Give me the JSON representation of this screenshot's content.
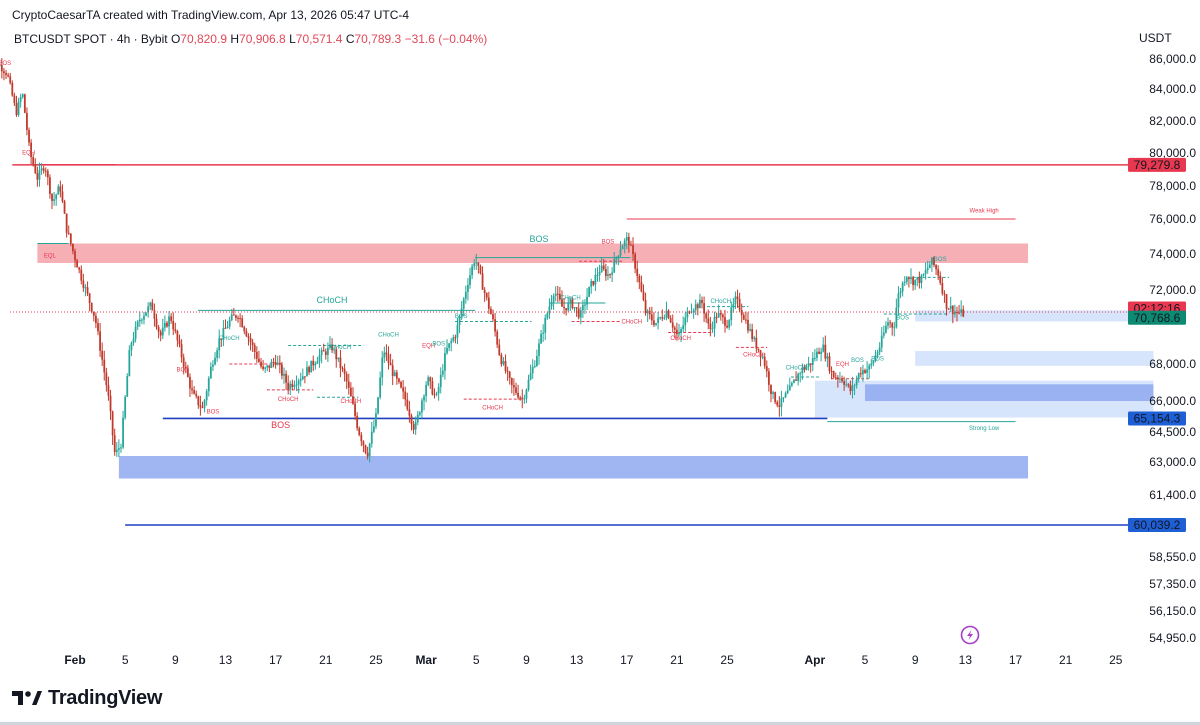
{
  "header": {
    "credit": "CryptoCaesarTA created with TradingView.com, Apr 13, 2026 05:47 UTC-4",
    "symbol": "BTCUSDT SPOT · 4h · Bybit",
    "open_label": "O",
    "open": "70,820.9",
    "high_label": "H",
    "high": "70,906.8",
    "low_label": "L",
    "low": "70,571.4",
    "close_label": "C",
    "close": "70,789.3",
    "change": "−31.6 (−0.04%)"
  },
  "brand": {
    "name": "TradingView"
  },
  "colors": {
    "up": "#26a69a",
    "down": "#c0392b",
    "red_line": "#e8384f",
    "blue_line": "#1f3fbf",
    "red_zone": "#f5a1a8",
    "blue_zone": "#8fa9f0",
    "light_blue_zone": "#cfe0fa"
  },
  "chart_data": {
    "type": "candlestick",
    "currency": "USDT",
    "interval": "4h",
    "y_ticks": [
      86000,
      84000,
      82000,
      80000,
      78000,
      76000,
      74000,
      72000,
      68000,
      66000,
      64500,
      63000,
      61400,
      58550,
      57350,
      56150,
      54950
    ],
    "y_tick_labels": [
      "86,000.0",
      "84,000.0",
      "82,000.0",
      "80,000.0",
      "78,000.0",
      "76,000.0",
      "74,000.0",
      "72,000.0",
      "68,000.0",
      "66,000.0",
      "64,500.0",
      "63,000.0",
      "61,400.0",
      "58,550.0",
      "57,350.0",
      "56,150.0",
      "54,950.0"
    ],
    "x_ticks": [
      {
        "label": "Feb",
        "day": 32,
        "bold": true
      },
      {
        "label": "5",
        "day": 36
      },
      {
        "label": "9",
        "day": 40
      },
      {
        "label": "13",
        "day": 44
      },
      {
        "label": "17",
        "day": 48
      },
      {
        "label": "21",
        "day": 52
      },
      {
        "label": "25",
        "day": 56
      },
      {
        "label": "Mar",
        "day": 60,
        "bold": true
      },
      {
        "label": "5",
        "day": 64
      },
      {
        "label": "9",
        "day": 68
      },
      {
        "label": "13",
        "day": 72
      },
      {
        "label": "17",
        "day": 76
      },
      {
        "label": "21",
        "day": 80
      },
      {
        "label": "25",
        "day": 84
      },
      {
        "label": "Apr",
        "day": 91,
        "bold": true
      },
      {
        "label": "5",
        "day": 95
      },
      {
        "label": "9",
        "day": 99
      },
      {
        "label": "13",
        "day": 103
      },
      {
        "label": "17",
        "day": 107
      },
      {
        "label": "21",
        "day": 111
      },
      {
        "label": "25",
        "day": 115
      }
    ],
    "price_tags": [
      {
        "label": "79,279.8",
        "value": 79279.8,
        "color": "#e8384f"
      },
      {
        "label": "02:12:16",
        "value": 71000,
        "color": "#e8384f"
      },
      {
        "label": "70,768.6",
        "value": 70500,
        "color": "#0d8a72"
      },
      {
        "label": "65,154.3",
        "value": 65154.3,
        "color": "#1f5fd6"
      },
      {
        "label": "60,039.2",
        "value": 60039.2,
        "color": "#1f5fd6"
      }
    ],
    "key_levels": [
      {
        "value": 79279.8,
        "from": 27,
        "to": 119,
        "color": "#e8384f"
      },
      {
        "value": 65154.3,
        "from": 39,
        "to": 92,
        "color": "#1f3fbf"
      },
      {
        "value": 60039.2,
        "from": 36,
        "to": 119,
        "color": "#1f3fbf"
      },
      {
        "value": 76000,
        "from": 76,
        "to": 107,
        "color": "#e8384f",
        "label": "Weak High"
      },
      {
        "value": 65000,
        "from": 92,
        "to": 107,
        "color": "#26a69a",
        "label": "Strong Low"
      }
    ],
    "zones": [
      {
        "type": "supply",
        "from": 29,
        "to": 108,
        "top": 74600,
        "bottom": 73500,
        "color": "#f5a1a8"
      },
      {
        "type": "demand",
        "from": 35.5,
        "to": 108,
        "top": 63300,
        "bottom": 62200,
        "color": "#8fa9f0"
      },
      {
        "type": "fvg",
        "from": 99,
        "to": 118,
        "top": 70900,
        "bottom": 70300,
        "color": "#cfe0fa"
      },
      {
        "type": "fvg",
        "from": 99,
        "to": 118,
        "top": 68700,
        "bottom": 67900,
        "color": "#cfe0fa"
      },
      {
        "type": "fvg",
        "from": 91,
        "to": 118,
        "top": 67100,
        "bottom": 65200,
        "color": "#cfe0fa"
      },
      {
        "type": "fvg",
        "from": 95,
        "to": 118,
        "top": 66900,
        "bottom": 66000,
        "color": "#8fa9f0"
      }
    ],
    "annotations": [
      {
        "text": "BOS",
        "day": 26.4,
        "value": 85600,
        "color": "#e8384f"
      },
      {
        "text": "EQH",
        "day": 28.3,
        "value": 79900,
        "color": "#e8384f"
      },
      {
        "text": "EQL",
        "day": 30,
        "value": 73800,
        "color": "#e8384f"
      },
      {
        "text": "BOS",
        "day": 40.6,
        "value": 67600,
        "color": "#e8384f"
      },
      {
        "text": "BOS",
        "day": 43,
        "value": 65400,
        "color": "#e8384f"
      },
      {
        "text": "CHoCH",
        "day": 44.3,
        "value": 69300,
        "color": "#26a69a"
      },
      {
        "text": "CHoCH",
        "day": 49,
        "value": 66000,
        "color": "#e8384f"
      },
      {
        "text": "CHoCH",
        "day": 53.2,
        "value": 68800,
        "color": "#26a69a"
      },
      {
        "text": "CHoCH",
        "day": 54,
        "value": 65900,
        "color": "#e8384f"
      },
      {
        "text": "CHoCH",
        "day": 57,
        "value": 69500,
        "color": "#26a69a"
      },
      {
        "text": "EQH",
        "day": 60.2,
        "value": 68900,
        "color": "#e8384f"
      },
      {
        "text": "BOS",
        "day": 61,
        "value": 69000,
        "color": "#26a69a"
      },
      {
        "text": "BOS",
        "day": 62.8,
        "value": 70500,
        "color": "#26a69a"
      },
      {
        "text": "CHoCH",
        "day": 65.3,
        "value": 65600,
        "color": "#e8384f"
      },
      {
        "text": "CHoCH",
        "day": 71.5,
        "value": 71500,
        "color": "#26a69a"
      },
      {
        "text": "BOS",
        "day": 74.5,
        "value": 74600,
        "color": "#e8384f"
      },
      {
        "text": "CHoCH",
        "day": 76.4,
        "value": 70200,
        "color": "#e8384f"
      },
      {
        "text": "CHoCH",
        "day": 83.5,
        "value": 71300,
        "color": "#26a69a"
      },
      {
        "text": "CHoCH",
        "day": 80.3,
        "value": 69300,
        "color": "#e8384f"
      },
      {
        "text": "CHoCH",
        "day": 86.1,
        "value": 68400,
        "color": "#e8384f"
      },
      {
        "text": "CHoCH",
        "day": 89.5,
        "value": 67700,
        "color": "#26a69a"
      },
      {
        "text": "EQH",
        "day": 93.2,
        "value": 67900,
        "color": "#e8384f"
      },
      {
        "text": "BOS",
        "day": 94.4,
        "value": 68100,
        "color": "#26a69a"
      },
      {
        "text": "BOS",
        "day": 96,
        "value": 68200,
        "color": "#26a69a"
      },
      {
        "text": "BOS",
        "day": 98,
        "value": 70400,
        "color": "#26a69a"
      },
      {
        "text": "BOS",
        "day": 101,
        "value": 73600,
        "color": "#26a69a"
      },
      {
        "text": "Weak High",
        "day": 104.5,
        "value": 76400,
        "color": "#e8384f"
      },
      {
        "text": "Strong Low",
        "day": 104.5,
        "value": 64600,
        "color": "#26a69a"
      }
    ],
    "big_annotations": [
      {
        "text": "BOS",
        "day": 69,
        "value": 74700,
        "color": "#26a69a"
      },
      {
        "text": "CHoCH",
        "day": 52.5,
        "value": 71300,
        "color": "#26a69a"
      },
      {
        "text": "BOS",
        "day": 48.4,
        "value": 64700,
        "color": "#e8384f"
      }
    ],
    "structure_lines": [
      {
        "from": 29,
        "to": 35.2,
        "value": 79300,
        "color": "#e8384f",
        "dash": false
      },
      {
        "from": 29,
        "to": 31.5,
        "value": 74600,
        "color": "#26a69a",
        "dash": false
      },
      {
        "from": 41.8,
        "to": 50,
        "value": 70900,
        "color": "#26a69a",
        "dash": false
      },
      {
        "from": 50,
        "to": 63.9,
        "value": 70900,
        "color": "#26a69a",
        "dash": false
      },
      {
        "from": 49,
        "to": 55,
        "value": 69000,
        "color": "#26a69a",
        "dash": true
      },
      {
        "from": 44.3,
        "to": 48.7,
        "value": 68000,
        "color": "#e8384f",
        "dash": true
      },
      {
        "from": 47.3,
        "to": 51,
        "value": 66600,
        "color": "#e8384f",
        "dash": true
      },
      {
        "from": 51.3,
        "to": 54.6,
        "value": 66200,
        "color": "#26a69a",
        "dash": true
      },
      {
        "from": 63.9,
        "to": 76.3,
        "value": 73800,
        "color": "#26a69a",
        "dash": false
      },
      {
        "from": 62.3,
        "to": 68.4,
        "value": 70300,
        "color": "#26a69a",
        "dash": true
      },
      {
        "from": 63,
        "to": 67.7,
        "value": 66100,
        "color": "#e8384f",
        "dash": true
      },
      {
        "from": 69.8,
        "to": 74.3,
        "value": 71300,
        "color": "#26a69a",
        "dash": false
      },
      {
        "from": 71.6,
        "to": 75.5,
        "value": 70300,
        "color": "#e8384f",
        "dash": true
      },
      {
        "from": 72.2,
        "to": 75.7,
        "value": 73600,
        "color": "#e8384f",
        "dash": true
      },
      {
        "from": 82.4,
        "to": 85.7,
        "value": 71100,
        "color": "#26a69a",
        "dash": true
      },
      {
        "from": 79.3,
        "to": 82.9,
        "value": 69700,
        "color": "#e8384f",
        "dash": true
      },
      {
        "from": 84.7,
        "to": 87.2,
        "value": 68900,
        "color": "#e8384f",
        "dash": true
      },
      {
        "from": 89.1,
        "to": 91.5,
        "value": 67300,
        "color": "#26a69a",
        "dash": true
      },
      {
        "from": 92.3,
        "to": 95.3,
        "value": 67200,
        "color": "#e8384f",
        "dash": true
      },
      {
        "from": 96.5,
        "to": 101.7,
        "value": 70700,
        "color": "#26a69a",
        "dash": true
      },
      {
        "from": 98.8,
        "to": 101.7,
        "value": 72700,
        "color": "#26a69a",
        "dash": true
      }
    ],
    "candles": []
  }
}
